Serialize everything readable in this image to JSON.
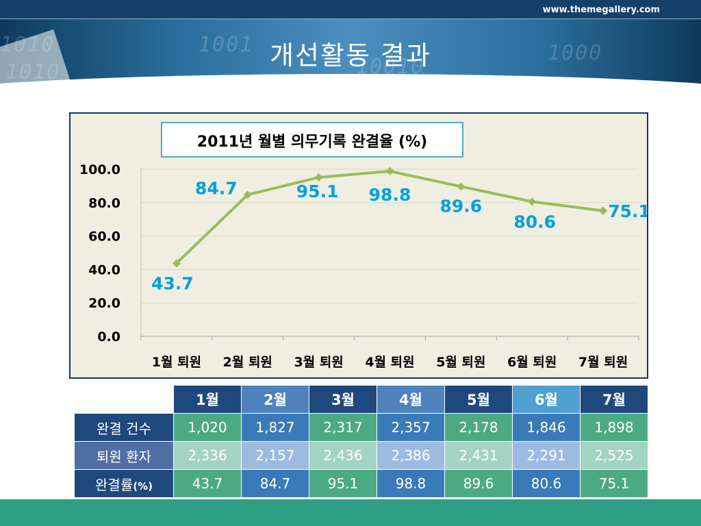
{
  "header": {
    "site_url": "www.themegallery.com",
    "title": "개선활동 결과",
    "decor_digits": [
      "1010",
      "1010",
      "1001",
      "10010",
      "1000"
    ]
  },
  "colors": {
    "line": "#9bbb59",
    "data_label": "#00a0e0",
    "chart_bg": "#efeee1",
    "chart_border": "#17375e",
    "title_border": "#4bacc6",
    "bottom_bar": "#2e9f83"
  },
  "chart_data": {
    "type": "line",
    "title": "2011년 월별 의무기록 완결율 (%)",
    "categories": [
      "1월 퇴원",
      "2월 퇴원",
      "3월 퇴원",
      "4월 퇴원",
      "5월 퇴원",
      "6월 퇴원",
      "7월 퇴원"
    ],
    "series": [
      {
        "values": [
          43.7,
          84.7,
          95.1,
          98.8,
          89.6,
          80.6,
          75.1
        ]
      }
    ],
    "data_labels": [
      "43.7",
      "84.7",
      "95.1",
      "98.8",
      "89.6",
      "80.6",
      "75.1"
    ],
    "y_ticks": [
      "0.0",
      "20.0",
      "40.0",
      "60.0",
      "80.0",
      "100.0"
    ],
    "ylim": [
      0,
      100
    ],
    "grid": true,
    "legend": "none",
    "marker": "diamond"
  },
  "table": {
    "months": [
      "1월",
      "2월",
      "3월",
      "4월",
      "5월",
      "6월",
      "7월"
    ],
    "rows": [
      {
        "label": "완결 건수",
        "values": [
          "1,020",
          "1,827",
          "2,317",
          "2,357",
          "2,178",
          "1,846",
          "1,898"
        ]
      },
      {
        "label": "퇴원 환자",
        "values": [
          "2,336",
          "2,157",
          "2,436",
          "2,386",
          "2,431",
          "2,291",
          "2,525"
        ]
      },
      {
        "label": "완결률",
        "label_suffix": "(%)",
        "values": [
          "43.7",
          "84.7",
          "95.1",
          "98.8",
          "89.6",
          "80.6",
          "75.1"
        ]
      }
    ]
  }
}
